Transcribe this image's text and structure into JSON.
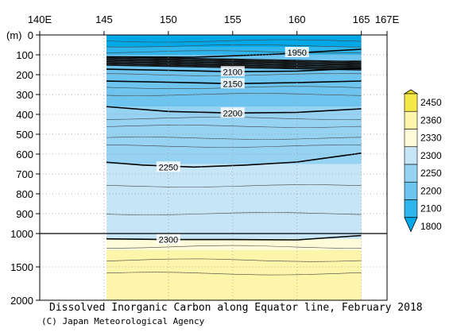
{
  "chart_data": {
    "type": "heatmap",
    "title": "Dissolved Inorganic Carbon along Equator line, February 2018",
    "credit": "(C) Japan Meteorological Agency",
    "x_unit_label": "E",
    "y_unit_label": "(m)",
    "x_ticks": [
      "140E",
      "145",
      "150",
      "155",
      "160",
      "165",
      "167E"
    ],
    "y_ticks_upper": [
      "0",
      "100",
      "200",
      "300",
      "400",
      "500",
      "600",
      "700",
      "800",
      "900",
      "1000"
    ],
    "y_ticks_lower": [
      "1500",
      "2000"
    ],
    "xlim": [
      140,
      167
    ],
    "data_xlim": [
      145,
      165
    ],
    "ylim": [
      0,
      2000
    ],
    "grid": true,
    "colorbar": {
      "levels": [
        "1800",
        "2100",
        "2200",
        "2250",
        "2300",
        "2330",
        "2360",
        "2450"
      ],
      "colors": [
        "#00a8e8",
        "#2eb5ec",
        "#6cc4ef",
        "#96d2f2",
        "#c6e6f7",
        "#fefbd8",
        "#fdf5aa",
        "#f7e84a",
        "#ece020"
      ]
    },
    "contours": [
      {
        "label": "1950",
        "depth_m": [
          {
            "x": 145,
            "y": 110
          },
          {
            "x": 152,
            "y": 112
          },
          {
            "x": 158,
            "y": 98
          },
          {
            "x": 165,
            "y": 72
          }
        ]
      },
      {
        "label": "2100",
        "depth_m": [
          {
            "x": 145,
            "y": 172
          },
          {
            "x": 150,
            "y": 178
          },
          {
            "x": 155,
            "y": 185
          },
          {
            "x": 160,
            "y": 182
          },
          {
            "x": 165,
            "y": 168
          }
        ]
      },
      {
        "label": "2150",
        "depth_m": [
          {
            "x": 145,
            "y": 232
          },
          {
            "x": 150,
            "y": 238
          },
          {
            "x": 155,
            "y": 245
          },
          {
            "x": 160,
            "y": 240
          },
          {
            "x": 165,
            "y": 232
          }
        ]
      },
      {
        "label": "2200",
        "depth_m": [
          {
            "x": 145,
            "y": 360
          },
          {
            "x": 150,
            "y": 385
          },
          {
            "x": 155,
            "y": 393
          },
          {
            "x": 160,
            "y": 390
          },
          {
            "x": 165,
            "y": 372
          }
        ]
      },
      {
        "label": "2250",
        "depth_m": [
          {
            "x": 145,
            "y": 640
          },
          {
            "x": 148,
            "y": 655
          },
          {
            "x": 152,
            "y": 665
          },
          {
            "x": 156,
            "y": 655
          },
          {
            "x": 160,
            "y": 640
          },
          {
            "x": 165,
            "y": 595
          }
        ]
      },
      {
        "label": "2300",
        "depth_m": [
          {
            "x": 145,
            "y": 1080
          },
          {
            "x": 150,
            "y": 1090
          },
          {
            "x": 155,
            "y": 1090
          },
          {
            "x": 160,
            "y": 1095
          },
          {
            "x": 165,
            "y": 1030
          }
        ]
      }
    ]
  }
}
